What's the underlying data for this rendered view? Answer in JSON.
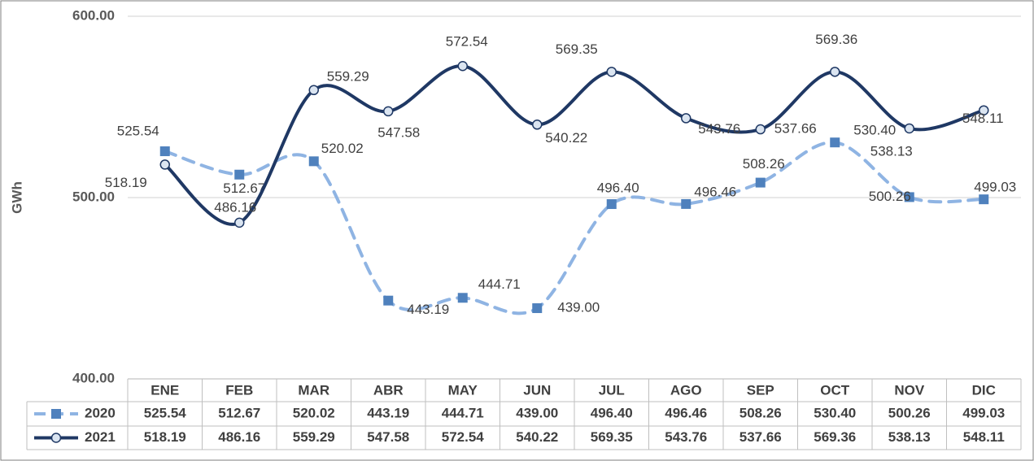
{
  "chart_data": {
    "type": "line",
    "y_label": "GWh",
    "categories": [
      "ENE",
      "FEB",
      "MAR",
      "ABR",
      "MAY",
      "JUN",
      "JUL",
      "AGO",
      "SEP",
      "OCT",
      "NOV",
      "DIC"
    ],
    "series": [
      {
        "name": "2020",
        "color": "#8fb4e3",
        "marker_color": "#4f81bd",
        "marker": "square",
        "dashed": true,
        "values": [
          525.54,
          512.67,
          520.02,
          443.19,
          444.71,
          439,
          496.4,
          496.46,
          508.26,
          530.4,
          500.26,
          499.03
        ],
        "value_labels": [
          "525.54",
          "512.67",
          "520.02",
          "443.19",
          "444.71",
          "439.00",
          "496.40",
          "496.46",
          "508.26",
          "530.40",
          "500.26",
          "499.03"
        ]
      },
      {
        "name": "2021",
        "color": "#1f3864",
        "marker_color": "#dbe5f1",
        "marker": "circle",
        "dashed": false,
        "values": [
          518.19,
          486.16,
          559.29,
          547.58,
          572.54,
          540.22,
          569.35,
          543.76,
          537.66,
          569.36,
          538.13,
          548.11
        ],
        "value_labels": [
          "518.19",
          "486.16",
          "559.29",
          "547.58",
          "572.54",
          "540.22",
          "569.35",
          "543.76",
          "537.66",
          "569.36",
          "538.13",
          "548.11"
        ]
      }
    ],
    "ylim": [
      400,
      600
    ],
    "yticks": [
      {
        "value": 400,
        "label": "400.00"
      },
      {
        "value": 500,
        "label": "500.00"
      },
      {
        "value": 600,
        "label": "600.00"
      }
    ],
    "grid": true
  }
}
